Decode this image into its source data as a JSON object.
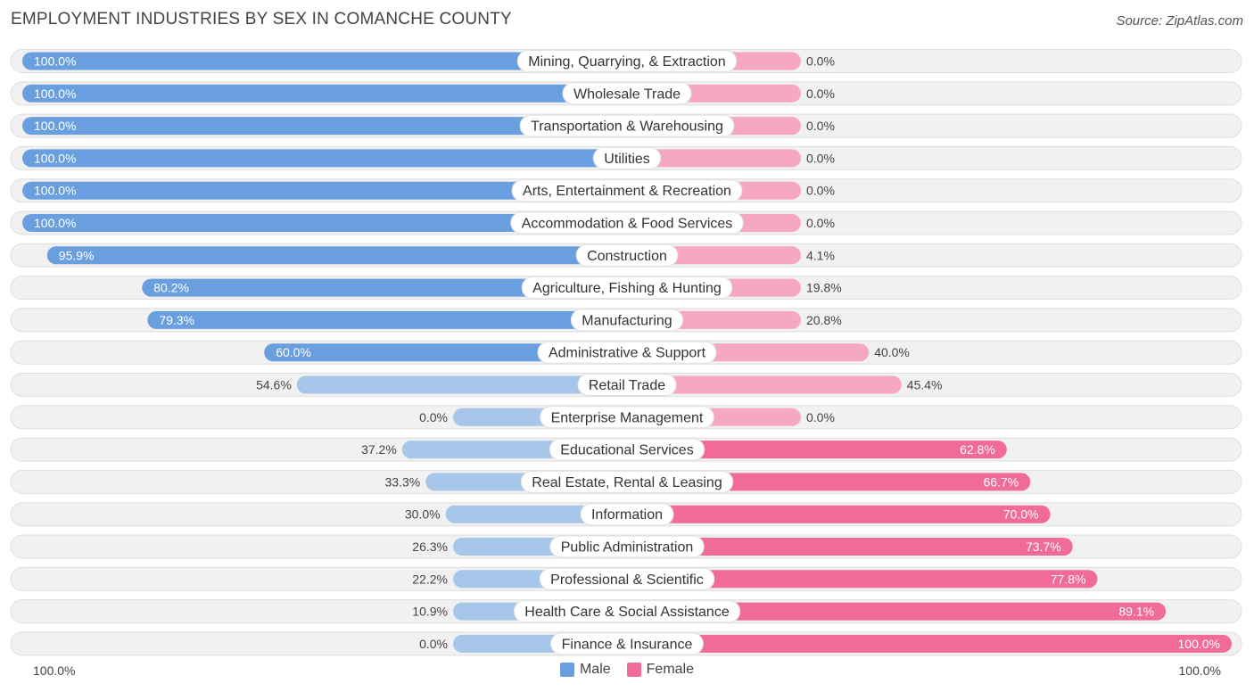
{
  "header": {
    "title": "EMPLOYMENT INDUSTRIES BY SEX IN COMANCHE COUNTY",
    "source": "Source: ZipAtlas.com"
  },
  "colors": {
    "male_strong": "#6a9fdf",
    "male_light": "#a6c6ea",
    "female_strong": "#f06b96",
    "female_light": "#f7a8c1",
    "track": "#f1f1f1",
    "track_border": "#dedede"
  },
  "chart_data": {
    "type": "bar",
    "title": "EMPLOYMENT INDUSTRIES BY SEX IN COMANCHE COUNTY",
    "orientation": "diverging-horizontal",
    "xlim": [
      0,
      100
    ],
    "axis_left_label": "100.0%",
    "axis_right_label": "100.0%",
    "legend": [
      "Male",
      "Female"
    ],
    "legend_position": "bottom-center",
    "categories": [
      "Mining, Quarrying, & Extraction",
      "Wholesale Trade",
      "Transportation & Warehousing",
      "Utilities",
      "Arts, Entertainment & Recreation",
      "Accommodation & Food Services",
      "Construction",
      "Agriculture, Fishing & Hunting",
      "Manufacturing",
      "Administrative & Support",
      "Retail Trade",
      "Enterprise Management",
      "Educational Services",
      "Real Estate, Rental & Leasing",
      "Information",
      "Public Administration",
      "Professional & Scientific",
      "Health Care & Social Assistance",
      "Finance & Insurance"
    ],
    "series": [
      {
        "name": "Male",
        "values": [
          100.0,
          100.0,
          100.0,
          100.0,
          100.0,
          100.0,
          95.9,
          80.2,
          79.3,
          60.0,
          54.6,
          0.0,
          37.2,
          33.3,
          30.0,
          26.3,
          22.2,
          10.9,
          0.0
        ],
        "labels": [
          "100.0%",
          "100.0%",
          "100.0%",
          "100.0%",
          "100.0%",
          "100.0%",
          "95.9%",
          "80.2%",
          "79.3%",
          "60.0%",
          "54.6%",
          "0.0%",
          "37.2%",
          "33.3%",
          "30.0%",
          "26.3%",
          "22.2%",
          "10.9%",
          "0.0%"
        ]
      },
      {
        "name": "Female",
        "values": [
          0.0,
          0.0,
          0.0,
          0.0,
          0.0,
          0.0,
          4.1,
          19.8,
          20.8,
          40.0,
          45.4,
          0.0,
          62.8,
          66.7,
          70.0,
          73.7,
          77.8,
          89.1,
          100.0
        ],
        "labels": [
          "0.0%",
          "0.0%",
          "0.0%",
          "0.0%",
          "0.0%",
          "0.0%",
          "4.1%",
          "19.8%",
          "20.8%",
          "40.0%",
          "45.4%",
          "0.0%",
          "62.8%",
          "66.7%",
          "70.0%",
          "73.7%",
          "77.8%",
          "89.1%",
          "100.0%"
        ]
      }
    ]
  }
}
